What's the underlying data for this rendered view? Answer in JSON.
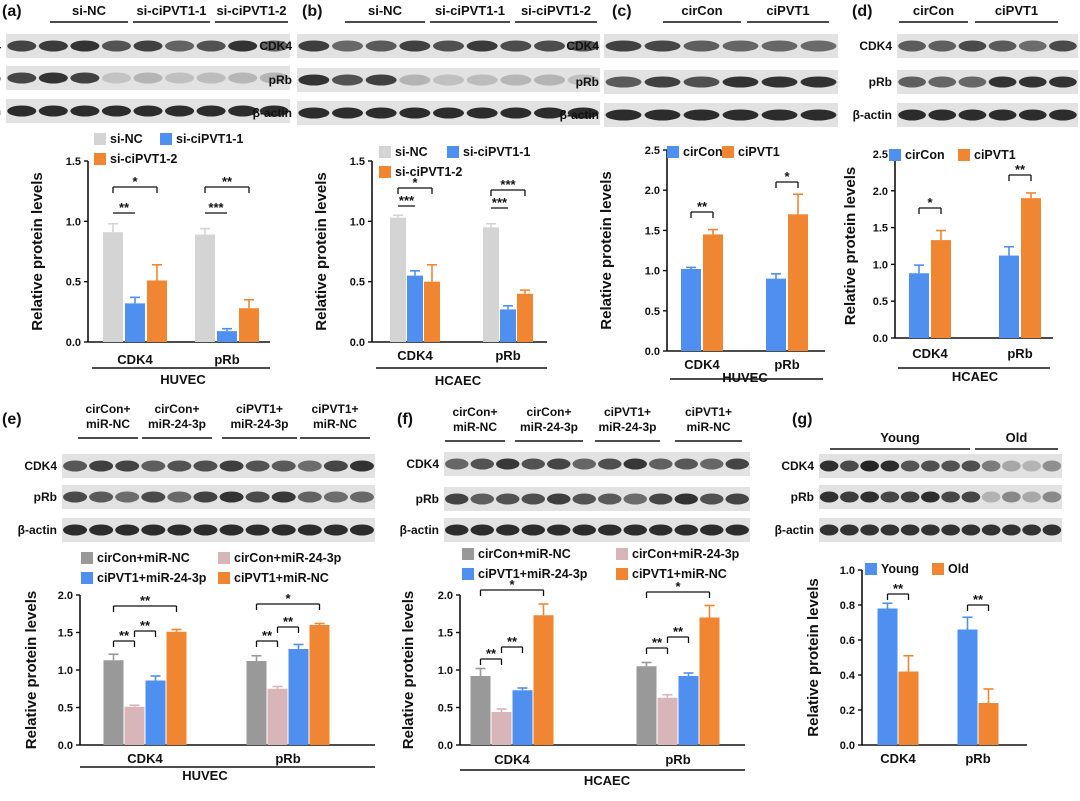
{
  "chart_data": [
    {
      "type": "bar",
      "panel_label": "(a)",
      "blot_groups": [
        "si-NC",
        "si-ciPVT1-1",
        "si-ciPVT1-2"
      ],
      "blot_rows": [
        "CDK4",
        "pRb",
        "β-actin"
      ],
      "categories": [
        "CDK4",
        "pRb"
      ],
      "series": [
        {
          "name": "si-NC",
          "values": [
            0.91,
            0.89
          ],
          "errors": [
            0.07,
            0.05
          ],
          "color": "#d4d4d4"
        },
        {
          "name": "si-ciPVT1-1",
          "values": [
            0.32,
            0.09
          ],
          "errors": [
            0.05,
            0.02
          ],
          "color": "#4f8ff0"
        },
        {
          "name": "si-ciPVT1-2",
          "values": [
            0.51,
            0.28
          ],
          "errors": [
            0.13,
            0.07
          ],
          "color": "#f08532"
        }
      ],
      "ylabel": "Relative protein levels",
      "ylim": [
        0,
        1.5
      ],
      "yticks": [
        "0.0",
        "0.5",
        "1.0",
        "1.5"
      ],
      "xlabel": "HUVEC",
      "legend_placement": "top-left",
      "significance": [
        {
          "category": "CDK4",
          "from": 0,
          "to": 1,
          "label": "**"
        },
        {
          "category": "CDK4",
          "from": 0,
          "to": 2,
          "label": "*"
        },
        {
          "category": "pRb",
          "from": 0,
          "to": 1,
          "label": "***"
        },
        {
          "category": "pRb",
          "from": 0,
          "to": 2,
          "label": "**"
        }
      ]
    },
    {
      "type": "bar",
      "panel_label": "(b)",
      "blot_groups": [
        "si-NC",
        "si-ciPVT1-1",
        "si-ciPVT1-2"
      ],
      "blot_rows": [
        "CDK4",
        "pRb",
        "β-actin"
      ],
      "categories": [
        "CDK4",
        "pRb"
      ],
      "series": [
        {
          "name": "si-NC",
          "values": [
            1.03,
            0.95
          ],
          "errors": [
            0.02,
            0.03
          ],
          "color": "#d4d4d4"
        },
        {
          "name": "si-ciPVT1-1",
          "values": [
            0.55,
            0.27
          ],
          "errors": [
            0.04,
            0.03
          ],
          "color": "#4f8ff0"
        },
        {
          "name": "si-ciPVT1-2",
          "values": [
            0.5,
            0.4
          ],
          "errors": [
            0.14,
            0.03
          ],
          "color": "#f08532"
        }
      ],
      "ylabel": "Relative protein levels",
      "ylim": [
        0,
        1.5
      ],
      "yticks": [
        "0.0",
        "0.5",
        "1.0",
        "1.5"
      ],
      "xlabel": "HCAEC",
      "legend_placement": "top-left",
      "significance": [
        {
          "category": "CDK4",
          "from": 0,
          "to": 1,
          "label": "***"
        },
        {
          "category": "CDK4",
          "from": 0,
          "to": 2,
          "label": "*"
        },
        {
          "category": "pRb",
          "from": 0,
          "to": 1,
          "label": "***"
        },
        {
          "category": "pRb",
          "from": 0,
          "to": 2,
          "label": "***"
        }
      ]
    },
    {
      "type": "bar",
      "panel_label": "(c)",
      "blot_groups": [
        "cirCon",
        "ciPVT1"
      ],
      "blot_rows": [
        "CDK4",
        "pRb",
        "β-actin"
      ],
      "categories": [
        "CDK4",
        "pRb"
      ],
      "series": [
        {
          "name": "cirCon",
          "values": [
            1.02,
            0.9
          ],
          "errors": [
            0.02,
            0.06
          ],
          "color": "#4f8ff0"
        },
        {
          "name": "ciPVT1",
          "values": [
            1.45,
            1.7
          ],
          "errors": [
            0.06,
            0.25
          ],
          "color": "#f08532"
        }
      ],
      "ylabel": "Relative protein levels",
      "ylim": [
        0,
        2.5
      ],
      "yticks": [
        "0.0",
        "0.5",
        "1.0",
        "1.5",
        "2.0",
        "2.5"
      ],
      "xlabel": "HUVEC",
      "legend_placement": "top",
      "significance": [
        {
          "category": "CDK4",
          "from": 0,
          "to": 1,
          "label": "**"
        },
        {
          "category": "pRb",
          "from": 0,
          "to": 1,
          "label": "*"
        }
      ]
    },
    {
      "type": "bar",
      "panel_label": "(d)",
      "blot_groups": [
        "cirCon",
        "ciPVT1"
      ],
      "blot_rows": [
        "CDK4",
        "pRb",
        "β-actin"
      ],
      "categories": [
        "CDK4",
        "pRb"
      ],
      "series": [
        {
          "name": "cirCon",
          "values": [
            0.88,
            1.12
          ],
          "errors": [
            0.11,
            0.12
          ],
          "color": "#4f8ff0"
        },
        {
          "name": "ciPVT1",
          "values": [
            1.33,
            1.9
          ],
          "errors": [
            0.13,
            0.07
          ],
          "color": "#f08532"
        }
      ],
      "ylabel": "Relative protein levels",
      "ylim": [
        0,
        2.5
      ],
      "yticks": [
        "0.0",
        "0.5",
        "1.0",
        "1.5",
        "2.0",
        "2.5"
      ],
      "xlabel": "HCAEC",
      "legend_placement": "top",
      "significance": [
        {
          "category": "CDK4",
          "from": 0,
          "to": 1,
          "label": "*"
        },
        {
          "category": "pRb",
          "from": 0,
          "to": 1,
          "label": "**"
        }
      ]
    },
    {
      "type": "bar",
      "panel_label": "(e)",
      "blot_groups": [
        [
          "cirCon+",
          "miR-NC"
        ],
        [
          "cirCon+",
          "miR-24-3p"
        ],
        [
          "ciPVT1+",
          "miR-24-3p"
        ],
        [
          "ciPVT1+",
          "miR-NC"
        ]
      ],
      "blot_rows": [
        "CDK4",
        "pRb",
        "β-actin"
      ],
      "categories": [
        "CDK4",
        "pRb"
      ],
      "series": [
        {
          "name": "cirCon+miR-NC",
          "values": [
            1.13,
            1.12
          ],
          "errors": [
            0.08,
            0.07
          ],
          "color": "#999999"
        },
        {
          "name": "cirCon+miR-24-3p",
          "values": [
            0.51,
            0.75
          ],
          "errors": [
            0.02,
            0.03
          ],
          "color": "#d8b5b8"
        },
        {
          "name": "ciPVT1+miR-24-3p",
          "values": [
            0.86,
            1.28
          ],
          "errors": [
            0.06,
            0.06
          ],
          "color": "#4f8ff0"
        },
        {
          "name": "ciPVT1+miR-NC",
          "values": [
            1.51,
            1.6
          ],
          "errors": [
            0.03,
            0.02
          ],
          "color": "#f08532"
        }
      ],
      "ylabel": "Relative protein levels",
      "ylim": [
        0,
        2.0
      ],
      "yticks": [
        "0.0",
        "0.5",
        "1.0",
        "1.5",
        "2.0"
      ],
      "xlabel": "HUVEC",
      "legend_placement": "top",
      "significance": [
        {
          "category": "CDK4",
          "from": 0,
          "to": 1,
          "label": "**"
        },
        {
          "category": "CDK4",
          "from": 1,
          "to": 2,
          "label": "**"
        },
        {
          "category": "CDK4",
          "from": 0,
          "to": 3,
          "label": "**"
        },
        {
          "category": "pRb",
          "from": 0,
          "to": 1,
          "label": "**"
        },
        {
          "category": "pRb",
          "from": 1,
          "to": 2,
          "label": "**"
        },
        {
          "category": "pRb",
          "from": 0,
          "to": 3,
          "label": "*"
        }
      ]
    },
    {
      "type": "bar",
      "panel_label": "(f)",
      "blot_groups": [
        [
          "cirCon+",
          "miR-NC"
        ],
        [
          "cirCon+",
          "miR-24-3p"
        ],
        [
          "ciPVT1+",
          "miR-24-3p"
        ],
        [
          "ciPVT1+",
          "miR-NC"
        ]
      ],
      "blot_rows": [
        "CDK4",
        "pRb",
        "β-actin"
      ],
      "categories": [
        "CDK4",
        "pRb"
      ],
      "series": [
        {
          "name": "cirCon+miR-NC",
          "values": [
            0.92,
            1.05
          ],
          "errors": [
            0.1,
            0.05
          ],
          "color": "#999999"
        },
        {
          "name": "cirCon+miR-24-3p",
          "values": [
            0.44,
            0.63
          ],
          "errors": [
            0.04,
            0.04
          ],
          "color": "#d8b5b8"
        },
        {
          "name": "ciPVT1+miR-24-3p",
          "values": [
            0.73,
            0.92
          ],
          "errors": [
            0.03,
            0.04
          ],
          "color": "#4f8ff0"
        },
        {
          "name": "ciPVT1+miR-NC",
          "values": [
            1.73,
            1.7
          ],
          "errors": [
            0.15,
            0.16
          ],
          "color": "#f08532"
        }
      ],
      "ylabel": "Relative protein levels",
      "ylim": [
        0,
        2.0
      ],
      "yticks": [
        "0.0",
        "0.5",
        "1.0",
        "1.5",
        "2.0"
      ],
      "xlabel": "HCAEC",
      "legend_placement": "top",
      "significance": [
        {
          "category": "CDK4",
          "from": 0,
          "to": 1,
          "label": "**"
        },
        {
          "category": "CDK4",
          "from": 1,
          "to": 2,
          "label": "**"
        },
        {
          "category": "CDK4",
          "from": 0,
          "to": 3,
          "label": "*"
        },
        {
          "category": "pRb",
          "from": 0,
          "to": 1,
          "label": "**"
        },
        {
          "category": "pRb",
          "from": 1,
          "to": 2,
          "label": "**"
        },
        {
          "category": "pRb",
          "from": 0,
          "to": 3,
          "label": "*"
        }
      ]
    },
    {
      "type": "bar",
      "panel_label": "(g)",
      "blot_groups": [
        "Young",
        "Old"
      ],
      "blot_rows": [
        "CDK4",
        "pRb",
        "β-actin"
      ],
      "categories": [
        "CDK4",
        "pRb"
      ],
      "series": [
        {
          "name": "Young",
          "values": [
            0.78,
            0.66
          ],
          "errors": [
            0.03,
            0.07
          ],
          "color": "#4f8ff0"
        },
        {
          "name": "Old",
          "values": [
            0.42,
            0.24
          ],
          "errors": [
            0.09,
            0.08
          ],
          "color": "#f08532"
        }
      ],
      "ylabel": "Relative protein levels",
      "ylim": [
        0,
        1.0
      ],
      "yticks": [
        "0.0",
        "0.2",
        "0.4",
        "0.6",
        "0.8",
        "1.0"
      ],
      "xlabel": "",
      "legend_placement": "top",
      "significance": [
        {
          "category": "CDK4",
          "from": 0,
          "to": 1,
          "label": "**"
        },
        {
          "category": "pRb",
          "from": 0,
          "to": 1,
          "label": "**"
        }
      ]
    }
  ]
}
